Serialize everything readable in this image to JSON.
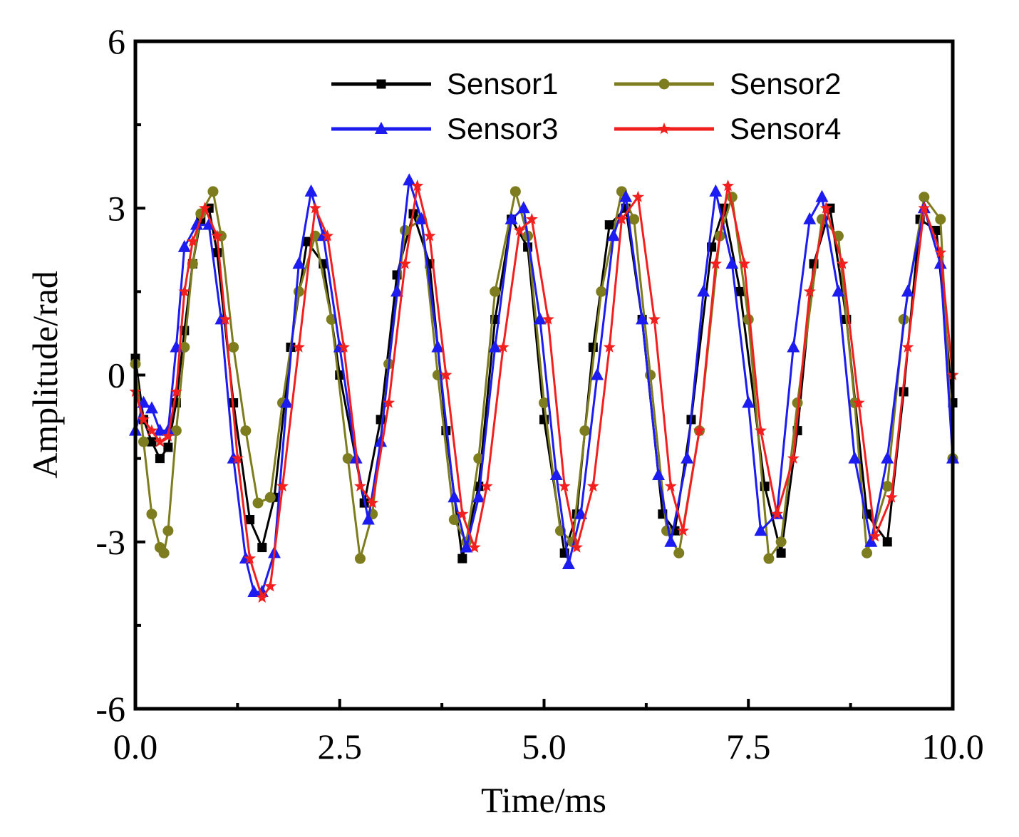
{
  "chart_data": {
    "type": "line",
    "title": "",
    "xlabel": "Time/ms",
    "ylabel": "Amplitude/rad",
    "xlim": [
      0,
      10
    ],
    "ylim": [
      -6,
      6
    ],
    "xticks": [
      "0.0",
      "2.5",
      "5.0",
      "7.5",
      "10.0"
    ],
    "xtick_values": [
      0,
      2.5,
      5,
      7.5,
      10
    ],
    "yticks": [
      "-6",
      "-3",
      "0",
      "3",
      "6"
    ],
    "ytick_values": [
      -6,
      -3,
      0,
      3,
      6
    ],
    "grid": false,
    "legend_position": "top-right",
    "series": [
      {
        "name": "Sensor1",
        "color": "#000000",
        "marker": "square",
        "x": [
          0.0,
          0.1,
          0.2,
          0.3,
          0.4,
          0.5,
          0.6,
          0.7,
          0.8,
          0.9,
          1.0,
          1.2,
          1.4,
          1.55,
          1.7,
          1.9,
          2.1,
          2.3,
          2.5,
          2.8,
          3.0,
          3.2,
          3.4,
          3.6,
          3.8,
          4.0,
          4.2,
          4.4,
          4.6,
          4.8,
          5.0,
          5.25,
          5.4,
          5.6,
          5.8,
          6.0,
          6.2,
          6.45,
          6.6,
          6.8,
          7.05,
          7.2,
          7.4,
          7.7,
          7.9,
          8.1,
          8.3,
          8.5,
          8.7,
          8.95,
          9.2,
          9.4,
          9.6,
          9.8,
          10.0
        ],
        "y": [
          0.3,
          -0.8,
          -1.2,
          -1.5,
          -1.3,
          -0.5,
          0.8,
          2.0,
          2.8,
          3.0,
          2.2,
          -0.5,
          -2.6,
          -3.1,
          -2.2,
          0.5,
          2.4,
          2.0,
          0.0,
          -2.3,
          -0.8,
          1.8,
          2.9,
          2.0,
          -1.0,
          -3.3,
          -2.0,
          1.0,
          2.8,
          2.3,
          -0.8,
          -3.2,
          -2.5,
          0.5,
          2.7,
          3.0,
          1.0,
          -2.5,
          -2.8,
          -0.8,
          2.3,
          3.0,
          1.5,
          -2.0,
          -3.2,
          -1.0,
          2.0,
          3.0,
          1.0,
          -2.5,
          -3.0,
          -0.3,
          2.8,
          2.6,
          -0.5
        ]
      },
      {
        "name": "Sensor2",
        "color": "#7d7d1f",
        "marker": "circle",
        "x": [
          0.0,
          0.1,
          0.2,
          0.3,
          0.35,
          0.4,
          0.5,
          0.6,
          0.7,
          0.8,
          0.95,
          1.05,
          1.2,
          1.35,
          1.5,
          1.65,
          1.8,
          2.0,
          2.2,
          2.4,
          2.6,
          2.75,
          2.9,
          3.1,
          3.3,
          3.5,
          3.7,
          3.9,
          4.05,
          4.2,
          4.4,
          4.65,
          4.8,
          5.0,
          5.2,
          5.35,
          5.5,
          5.7,
          5.95,
          6.1,
          6.3,
          6.5,
          6.65,
          6.9,
          7.15,
          7.3,
          7.5,
          7.75,
          7.9,
          8.1,
          8.4,
          8.6,
          8.8,
          8.95,
          9.2,
          9.4,
          9.65,
          9.85,
          10.0
        ],
        "y": [
          0.2,
          -1.2,
          -2.5,
          -3.1,
          -3.2,
          -2.8,
          -1.0,
          0.5,
          2.0,
          2.9,
          3.3,
          2.5,
          0.5,
          -1.0,
          -2.3,
          -2.2,
          -0.5,
          1.5,
          2.5,
          1.0,
          -1.5,
          -3.3,
          -2.5,
          0.2,
          2.6,
          2.8,
          0.0,
          -2.6,
          -3.0,
          -1.5,
          1.5,
          3.3,
          2.5,
          -0.5,
          -2.8,
          -3.0,
          -1.0,
          1.5,
          3.3,
          2.8,
          0.0,
          -2.8,
          -3.2,
          -1.0,
          2.5,
          3.2,
          1.0,
          -3.3,
          -3.0,
          -0.5,
          2.8,
          2.5,
          -0.5,
          -3.2,
          -2.0,
          1.0,
          3.2,
          2.8,
          -1.5
        ]
      },
      {
        "name": "Sensor3",
        "color": "#1c1cf0",
        "marker": "triangle",
        "x": [
          0.0,
          0.1,
          0.2,
          0.3,
          0.4,
          0.5,
          0.6,
          0.75,
          0.9,
          1.05,
          1.2,
          1.35,
          1.45,
          1.55,
          1.7,
          1.85,
          2.0,
          2.15,
          2.3,
          2.5,
          2.7,
          2.85,
          3.0,
          3.2,
          3.35,
          3.5,
          3.7,
          3.9,
          4.05,
          4.2,
          4.4,
          4.6,
          4.75,
          4.95,
          5.15,
          5.3,
          5.45,
          5.65,
          5.85,
          6.0,
          6.2,
          6.4,
          6.55,
          6.75,
          6.95,
          7.1,
          7.3,
          7.5,
          7.65,
          7.85,
          8.05,
          8.25,
          8.4,
          8.6,
          8.8,
          9.0,
          9.2,
          9.45,
          9.65,
          9.85,
          10.0
        ],
        "y": [
          -1.0,
          -0.5,
          -0.6,
          -1.0,
          -1.0,
          0.5,
          2.3,
          2.7,
          2.7,
          1.0,
          -1.5,
          -3.3,
          -3.9,
          -3.9,
          -3.2,
          -0.5,
          2.0,
          3.3,
          2.5,
          0.5,
          -1.5,
          -2.6,
          -1.2,
          1.5,
          3.5,
          2.8,
          0.5,
          -2.2,
          -3.1,
          -2.2,
          0.5,
          2.8,
          3.0,
          1.0,
          -1.8,
          -3.4,
          -2.5,
          0.0,
          2.5,
          3.2,
          1.0,
          -1.8,
          -3.0,
          -1.5,
          1.5,
          3.3,
          2.0,
          -0.5,
          -2.8,
          -2.5,
          0.5,
          2.8,
          3.2,
          1.5,
          -1.5,
          -3.0,
          -1.5,
          1.5,
          3.0,
          2.0,
          -1.5
        ]
      },
      {
        "name": "Sensor4",
        "color": "#f21f1f",
        "marker": "star",
        "x": [
          0.0,
          0.1,
          0.2,
          0.3,
          0.4,
          0.5,
          0.6,
          0.7,
          0.85,
          1.0,
          1.1,
          1.25,
          1.4,
          1.55,
          1.65,
          1.8,
          2.0,
          2.2,
          2.35,
          2.55,
          2.75,
          2.9,
          3.1,
          3.3,
          3.45,
          3.6,
          3.8,
          4.0,
          4.15,
          4.3,
          4.5,
          4.7,
          4.85,
          5.05,
          5.25,
          5.4,
          5.6,
          5.8,
          5.95,
          6.15,
          6.35,
          6.55,
          6.7,
          6.9,
          7.1,
          7.25,
          7.45,
          7.65,
          7.85,
          8.05,
          8.25,
          8.45,
          8.65,
          8.85,
          9.05,
          9.25,
          9.45,
          9.65,
          9.85,
          10.0
        ],
        "y": [
          -0.3,
          -0.8,
          -1.0,
          -1.2,
          -1.1,
          -0.3,
          1.5,
          2.4,
          3.0,
          2.5,
          1.0,
          -1.5,
          -3.3,
          -4.0,
          -3.8,
          -2.0,
          0.5,
          3.0,
          2.5,
          0.5,
          -2.0,
          -2.3,
          -0.5,
          2.0,
          3.4,
          2.5,
          0.0,
          -2.5,
          -3.1,
          -2.0,
          0.5,
          2.6,
          2.8,
          1.0,
          -2.0,
          -3.1,
          -2.0,
          0.5,
          2.8,
          3.2,
          1.0,
          -2.0,
          -2.8,
          -1.0,
          2.0,
          3.4,
          2.0,
          -1.0,
          -2.5,
          -1.5,
          1.5,
          3.0,
          2.0,
          -0.5,
          -2.9,
          -2.2,
          0.5,
          3.0,
          2.2,
          0.0
        ]
      }
    ]
  }
}
